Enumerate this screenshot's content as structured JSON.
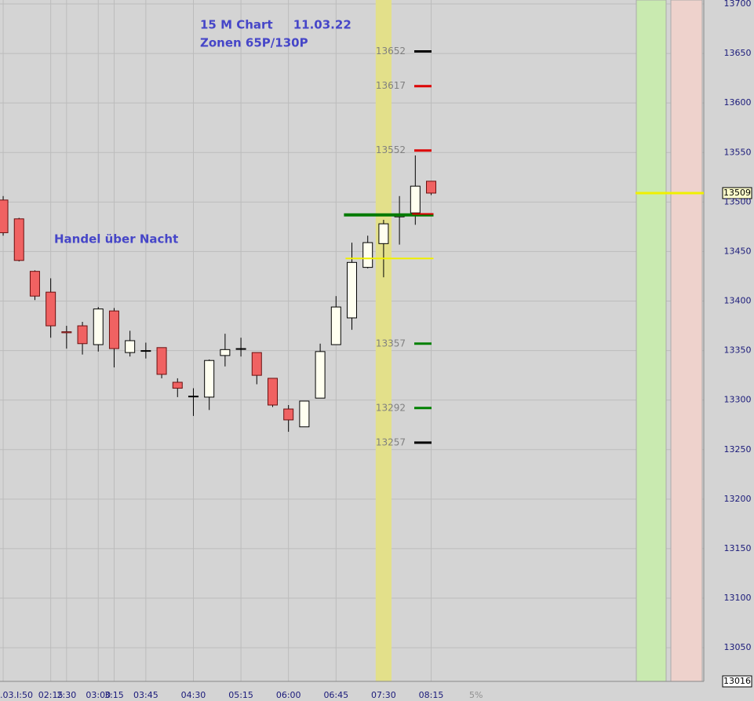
{
  "chart_data": {
    "type": "candlestick",
    "title": "15 M Chart     11.03.22",
    "subtitle": "Zonen 65P/130P",
    "annotation": "Handel über Nacht",
    "x_note": "5%",
    "xlim": [
      -0.2,
      44.2
    ],
    "xticks": [
      {
        "value": 0,
        "label": ".03.I:50"
      },
      {
        "value": 3,
        "label": "02:15"
      },
      {
        "value": 4,
        "label": "2:30"
      },
      {
        "value": 6,
        "label": "03:00"
      },
      {
        "value": 7,
        "label": "3:15"
      },
      {
        "value": 9,
        "label": "03:45"
      },
      {
        "value": 12,
        "label": "04:30"
      },
      {
        "value": 15,
        "label": "05:15"
      },
      {
        "value": 18,
        "label": "06:00"
      },
      {
        "value": 21,
        "label": "06:45"
      },
      {
        "value": 24,
        "label": "07:30"
      },
      {
        "value": 27,
        "label": "08:15"
      }
    ],
    "ylim": [
      13016,
      13700
    ],
    "yticks": [
      13050,
      13100,
      13150,
      13200,
      13250,
      13300,
      13350,
      13400,
      13450,
      13500,
      13550,
      13600,
      13650,
      13700
    ],
    "grid": true,
    "up_color": "#fffff0",
    "down_color": "#f06262",
    "open": [
      13502,
      13483,
      13430,
      13409,
      13369,
      13375,
      13356,
      13390,
      13348,
      13350,
      13353,
      13318,
      13304,
      13303,
      13345,
      13352,
      13348,
      13322,
      13291,
      13273,
      13302,
      13356,
      13383,
      13434,
      13458,
      13485,
      13489,
      13521
    ],
    "high": [
      13506,
      13484,
      13431,
      13423,
      13375,
      13379,
      13394,
      13393,
      13370,
      13358,
      13353,
      13322,
      13312,
      13341,
      13367,
      13363,
      13348,
      13322,
      13295,
      13299,
      13357,
      13405,
      13459,
      13466,
      13482,
      13506,
      13547,
      13521
    ],
    "low": [
      13466,
      13440,
      13401,
      13363,
      13352,
      13346,
      13349,
      13333,
      13344,
      13342,
      13322,
      13303,
      13284,
      13290,
      13334,
      13344,
      13316,
      13293,
      13268,
      13273,
      13302,
      13356,
      13371,
      13433,
      13424,
      13457,
      13477,
      13507
    ],
    "close": [
      13469,
      13441,
      13405,
      13375,
      13368,
      13357,
      13392,
      13352,
      13360,
      13350,
      13326,
      13312,
      13304,
      13340,
      13351,
      13352,
      13325,
      13295,
      13280,
      13299,
      13349,
      13394,
      13439,
      13459,
      13478,
      13486,
      13516,
      13509
    ],
    "highlight_index": 24,
    "levels": [
      {
        "value": 13652,
        "color": "#000000"
      },
      {
        "value": 13617,
        "color": "#dd0000"
      },
      {
        "value": 13552,
        "color": "#dd0000"
      },
      {
        "value": 13357,
        "color": "#008000"
      },
      {
        "value": 13292,
        "color": "#008000"
      },
      {
        "value": 13257,
        "color": "#000000"
      }
    ],
    "hlines": [
      {
        "value": 13487,
        "start": 22,
        "color": "#007a00",
        "width": 4
      },
      {
        "value": 13443,
        "start": 22.1,
        "color": "#f0f000",
        "width": 2
      },
      {
        "value": 13488,
        "start": 26.3,
        "color": "#dd0000",
        "width": 2
      }
    ]
  }
}
